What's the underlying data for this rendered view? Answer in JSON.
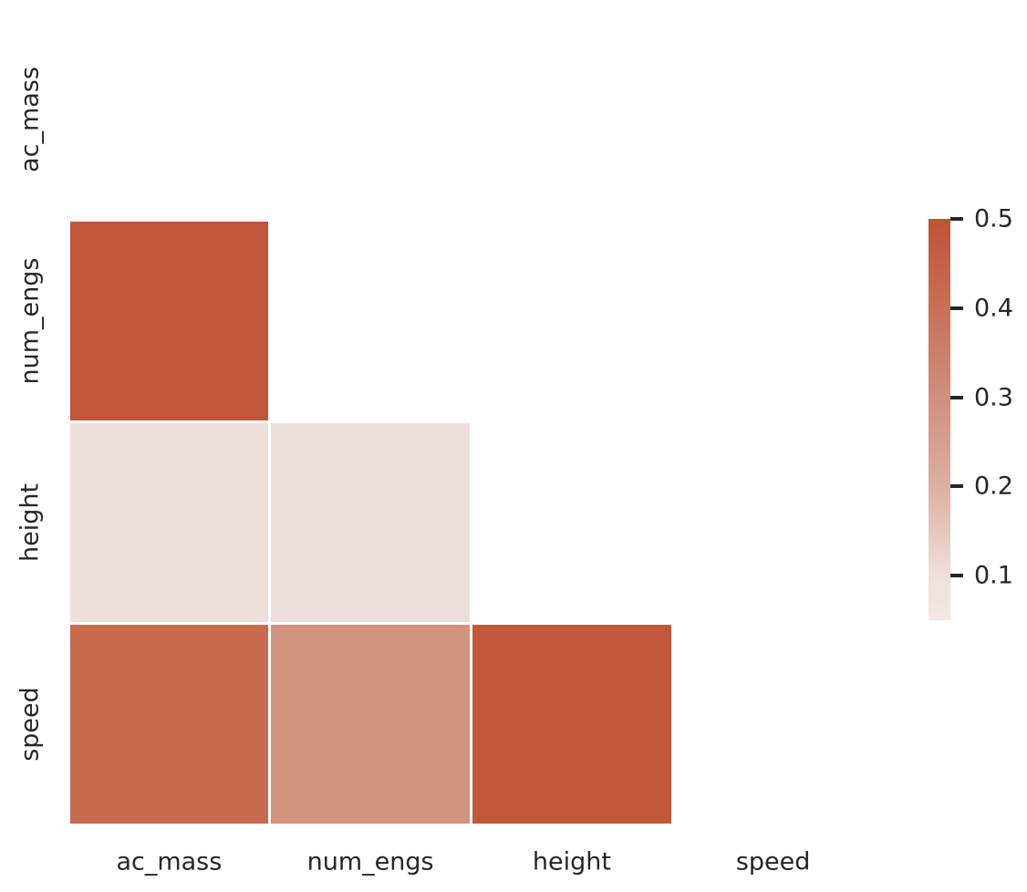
{
  "figure": {
    "background_color": "#ffffff",
    "text_color": "#262626"
  },
  "chart_data": {
    "type": "heatmap",
    "title": "",
    "xlabel": "",
    "ylabel": "",
    "variables": [
      "ac_mass",
      "num_engs",
      "height",
      "speed"
    ],
    "x_tick_labels": [
      "ac_mass",
      "num_engs",
      "height",
      "speed"
    ],
    "y_tick_labels": [
      "ac_mass",
      "num_engs",
      "height",
      "speed"
    ],
    "mask": "diagonal and upper triangle cells are blank",
    "grid_rows": 4,
    "grid_cols": 4,
    "cells": [
      {
        "row": 1,
        "col": 0,
        "row_label": "num_engs",
        "col_label": "ac_mass",
        "value": 0.49,
        "color": "#c25639"
      },
      {
        "row": 2,
        "col": 0,
        "row_label": "height",
        "col_label": "ac_mass",
        "value": 0.07,
        "color": "#eedfda"
      },
      {
        "row": 2,
        "col": 1,
        "row_label": "height",
        "col_label": "num_engs",
        "value": 0.07,
        "color": "#ecdeda"
      },
      {
        "row": 3,
        "col": 0,
        "row_label": "speed",
        "col_label": "ac_mass",
        "value": 0.43,
        "color": "#c76a4e"
      },
      {
        "row": 3,
        "col": 1,
        "row_label": "speed",
        "col_label": "num_engs",
        "value": 0.3,
        "color": "#d2937f"
      },
      {
        "row": 3,
        "col": 2,
        "row_label": "speed",
        "col_label": "height",
        "value": 0.48,
        "color": "#c3573a"
      }
    ],
    "colorbar": {
      "vmin": 0.05,
      "vmax": 0.5,
      "tick_labels": [
        "0.5",
        "0.4",
        "0.3",
        "0.2",
        "0.1"
      ],
      "tick_values": [
        0.5,
        0.4,
        0.3,
        0.2,
        0.1
      ],
      "gradient_stops": [
        {
          "value": 0.05,
          "color": "#f3e8e4"
        },
        {
          "value": 0.1,
          "color": "#efe0db"
        },
        {
          "value": 0.2,
          "color": "#ddafa0"
        },
        {
          "value": 0.3,
          "color": "#d18f7c"
        },
        {
          "value": 0.4,
          "color": "#c86f57"
        },
        {
          "value": 0.5,
          "color": "#bf5336"
        }
      ]
    }
  }
}
